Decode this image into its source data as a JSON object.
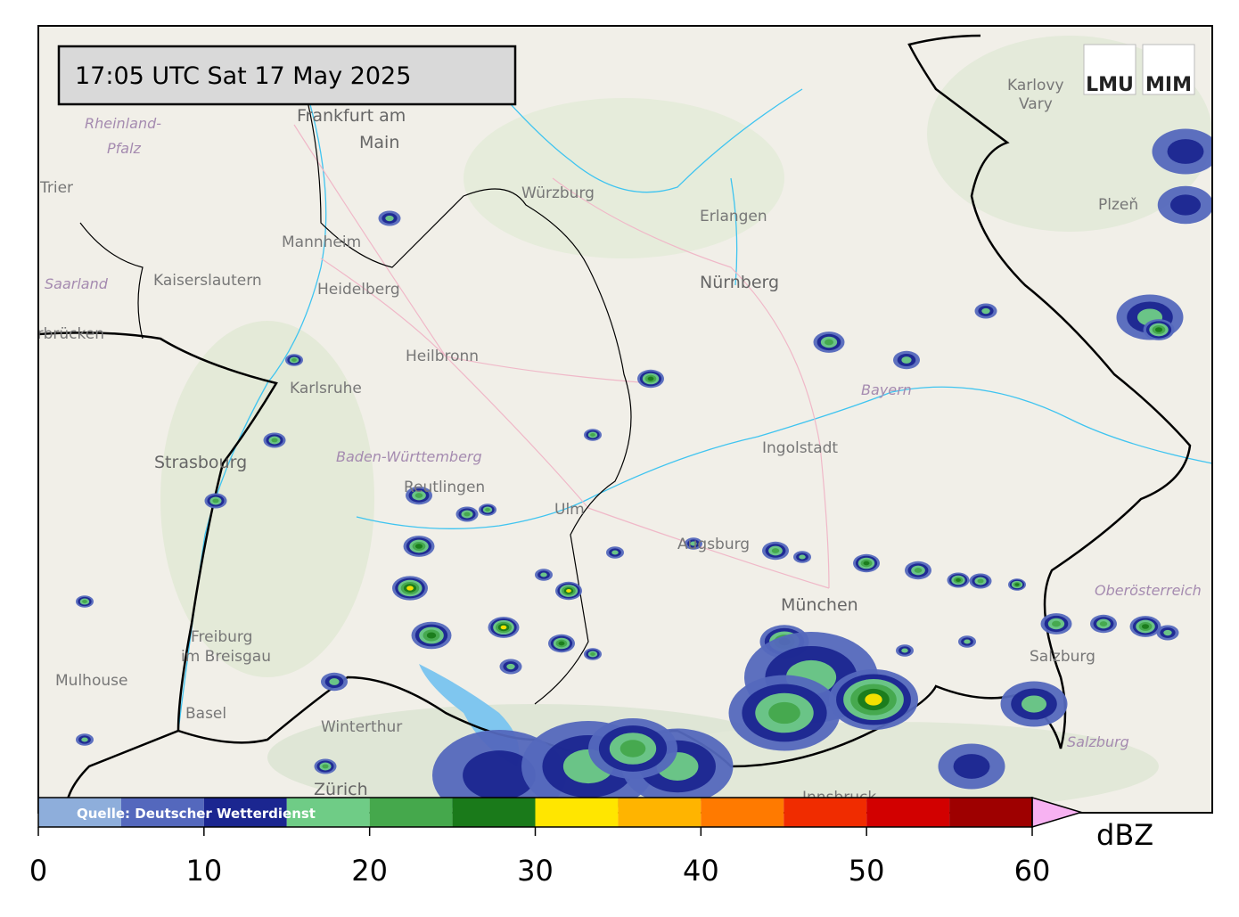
{
  "header": {
    "timestamp": "17:05 UTC  Sat 17 May 2025"
  },
  "logos": [
    "LMU",
    "MIM"
  ],
  "places": [
    {
      "text": "Frankfurt am"
    },
    {
      "text": "Main"
    },
    {
      "text": "Rheinland-"
    },
    {
      "text": "Pfalz"
    },
    {
      "text": "Trier"
    },
    {
      "text": "Mannheim"
    },
    {
      "text": "Kaiserslautern"
    },
    {
      "text": "Saarland"
    },
    {
      "text": "Saarbrücken"
    },
    {
      "text": "Heidelberg"
    },
    {
      "text": "Heilbronn"
    },
    {
      "text": "Karlsruhe"
    },
    {
      "text": "Strasbourg"
    },
    {
      "text": "Baden-Württemberg"
    },
    {
      "text": "Reutlingen"
    },
    {
      "text": "Ulm"
    },
    {
      "text": "Würzburg"
    },
    {
      "text": "Erlangen"
    },
    {
      "text": "Nürnberg"
    },
    {
      "text": "Bayern"
    },
    {
      "text": "Ingolstadt"
    },
    {
      "text": "Augsburg"
    },
    {
      "text": "München"
    },
    {
      "text": "Freiburg"
    },
    {
      "text": "im Breisgau"
    },
    {
      "text": "Mulhouse"
    },
    {
      "text": "Basel"
    },
    {
      "text": "Winterthur"
    },
    {
      "text": "Zürich"
    },
    {
      "text": "Karlovy"
    },
    {
      "text": "Vary"
    },
    {
      "text": "Plzeň"
    },
    {
      "text": "Oberösterreich"
    },
    {
      "text": "Salzburg"
    },
    {
      "text": "Salzburg"
    },
    {
      "text": "Innsbruck"
    }
  ],
  "colorbar": {
    "unit": "dBZ",
    "source": "Quelle: Deutscher Wetterdienst",
    "bins": [
      0,
      5,
      10,
      15,
      20,
      25,
      30,
      35,
      40,
      45,
      50,
      55,
      60
    ],
    "colors": [
      "#8eaedb",
      "#5468bd",
      "#1b2690",
      "#6fcc86",
      "#45a84c",
      "#1a7a1a",
      "#ffe600",
      "#ffb400",
      "#ff7a00",
      "#f02c00",
      "#d20000",
      "#9e0000"
    ],
    "extend_color": "#f7b2f2",
    "ticks": [
      0,
      10,
      20,
      30,
      40,
      50,
      60
    ]
  }
}
